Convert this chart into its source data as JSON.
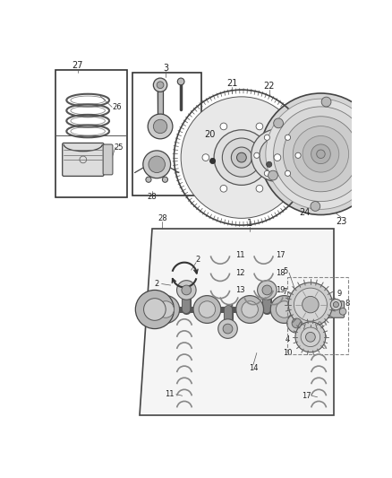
{
  "bg_color": "#ffffff",
  "fg_color": "#222222",
  "panel_color": "#f8f8f8",
  "line_color": "#444444",
  "figsize": [
    4.38,
    5.33
  ],
  "dpi": 100
}
